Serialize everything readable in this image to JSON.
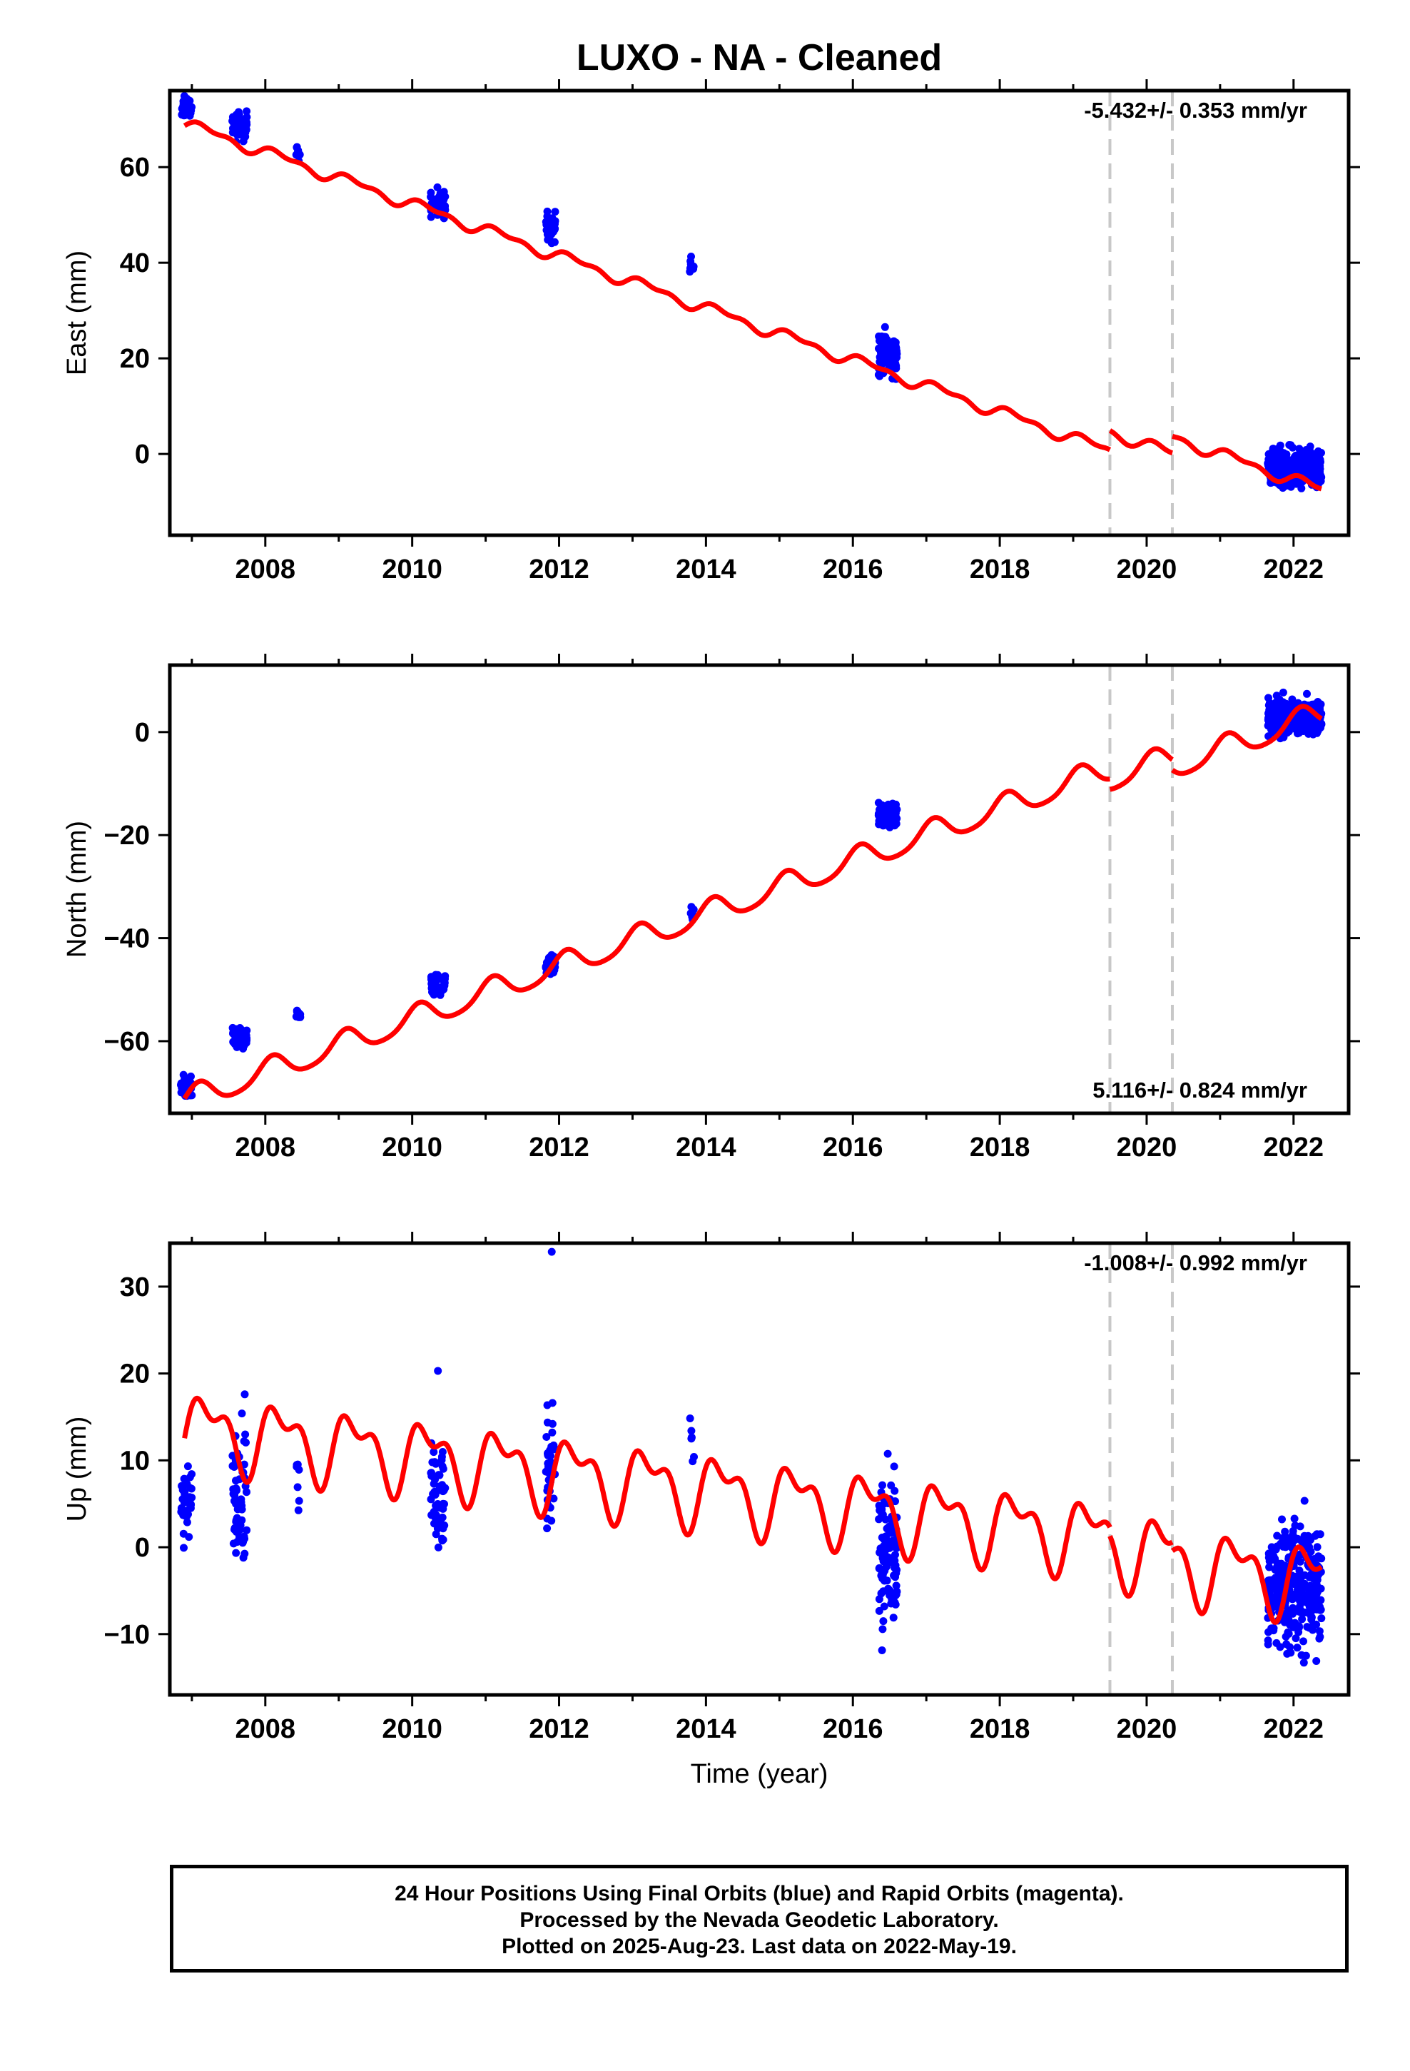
{
  "title": "LUXO  - NA - Cleaned",
  "footer": {
    "line1": "24 Hour Positions Using Final Orbits (blue) and Rapid Orbits (magenta).",
    "line2": "Processed by the Nevada Geodetic Laboratory.",
    "line3": "Plotted on 2025-Aug-23. Last data on 2022-May-19."
  },
  "xlabel": "Time (year)",
  "colors": {
    "data": "#0000ff",
    "model": "#ff0000",
    "offset_lines": "#c8c8c8",
    "axis": "#000000"
  },
  "chart_data": [
    {
      "type": "scatter",
      "ylabel": "East (mm)",
      "rate_label": "-5.432+/- 0.353 mm/yr",
      "rate_position": "top-right",
      "xlim": [
        2006.7,
        2022.75
      ],
      "ylim": [
        -17,
        76
      ],
      "xticks": [
        2008,
        2010,
        2012,
        2014,
        2016,
        2018,
        2020,
        2022
      ],
      "yticks": [
        0,
        20,
        40,
        60
      ],
      "offsets": [
        2019.5,
        2020.35
      ],
      "rate": -5.432,
      "intercept": 0.0,
      "t0": 2021.0,
      "seasonal": {
        "a1": 1.0,
        "p1": 0.3,
        "a2": 0.6,
        "p2": 1.1
      },
      "jumps": [
        {
          "t": 2019.5,
          "d": 4.0
        },
        {
          "t": 2020.35,
          "d": 3.5
        }
      ],
      "clusters": [
        {
          "t1": 2006.85,
          "t2": 2007.0,
          "c": 72.5,
          "s": 1.5,
          "n": 40
        },
        {
          "t1": 2007.55,
          "t2": 2007.75,
          "c": 68.5,
          "s": 2.0,
          "n": 60
        },
        {
          "t1": 2008.42,
          "t2": 2008.48,
          "c": 63.0,
          "s": 1.2,
          "n": 8
        },
        {
          "t1": 2010.25,
          "t2": 2010.45,
          "c": 52.5,
          "s": 2.0,
          "n": 55
        },
        {
          "t1": 2011.82,
          "t2": 2011.95,
          "c": 47.5,
          "s": 2.2,
          "n": 45
        },
        {
          "t1": 2013.78,
          "t2": 2013.84,
          "c": 39.5,
          "s": 1.2,
          "n": 8
        },
        {
          "t1": 2016.35,
          "t2": 2016.6,
          "c": 21.0,
          "s": 3.0,
          "n": 110
        },
        {
          "t1": 2021.65,
          "t2": 2022.38,
          "c": -3.0,
          "s": 2.8,
          "n": 320
        }
      ]
    },
    {
      "type": "scatter",
      "ylabel": "North (mm)",
      "rate_label": "5.116+/- 0.824 mm/yr",
      "rate_position": "bottom-right",
      "xlim": [
        2006.7,
        2022.75
      ],
      "ylim": [
        -74,
        13
      ],
      "xticks": [
        2008,
        2010,
        2012,
        2014,
        2016,
        2018,
        2020,
        2022
      ],
      "yticks": [
        -60,
        -40,
        -20,
        0
      ],
      "offsets": [
        2019.5,
        2020.35
      ],
      "rate": 5.116,
      "intercept": -3.5,
      "t0": 2021.0,
      "seasonal": {
        "a1": 2.4,
        "p1": 1.0,
        "a2": 0.4,
        "p2": 0.2
      },
      "jumps": [
        {
          "t": 2019.5,
          "d": -2.0
        },
        {
          "t": 2020.35,
          "d": -2.0
        }
      ],
      "clusters": [
        {
          "t1": 2006.85,
          "t2": 2007.0,
          "c": -69.0,
          "s": 1.6,
          "n": 35
        },
        {
          "t1": 2007.55,
          "t2": 2007.75,
          "c": -59.5,
          "s": 1.2,
          "n": 55
        },
        {
          "t1": 2008.42,
          "t2": 2008.48,
          "c": -54.5,
          "s": 0.8,
          "n": 8
        },
        {
          "t1": 2010.25,
          "t2": 2010.45,
          "c": -49.0,
          "s": 1.5,
          "n": 50
        },
        {
          "t1": 2011.82,
          "t2": 2011.95,
          "c": -45.0,
          "s": 1.2,
          "n": 40
        },
        {
          "t1": 2013.78,
          "t2": 2013.84,
          "c": -35.5,
          "s": 1.0,
          "n": 8
        },
        {
          "t1": 2016.35,
          "t2": 2016.6,
          "c": -16.0,
          "s": 1.8,
          "n": 110
        },
        {
          "t1": 2021.65,
          "t2": 2022.38,
          "c": 3.0,
          "s": 2.3,
          "n": 320
        }
      ]
    },
    {
      "type": "scatter",
      "ylabel": "Up (mm)",
      "rate_label": "-1.008+/- 0.992 mm/yr",
      "rate_position": "top-right",
      "xlim": [
        2006.7,
        2022.75
      ],
      "ylim": [
        -17,
        35
      ],
      "xticks": [
        2008,
        2010,
        2012,
        2014,
        2016,
        2018,
        2020,
        2022
      ],
      "yticks": [
        -10,
        0,
        10,
        20,
        30
      ],
      "offsets": [
        2019.5,
        2020.35
      ],
      "rate": -1.008,
      "intercept": -2.5,
      "t0": 2021.0,
      "seasonal": {
        "a1": 3.5,
        "p1": 0.2,
        "a2": 2.0,
        "p2": 1.4
      },
      "jumps": [
        {
          "t": 2019.5,
          "d": -1.0
        },
        {
          "t": 2020.35,
          "d": -1.0
        }
      ],
      "clusters": [
        {
          "t1": 2006.85,
          "t2": 2007.0,
          "c": 5.0,
          "s": 3.0,
          "n": 35
        },
        {
          "t1": 2007.55,
          "t2": 2007.75,
          "c": 7.0,
          "s": 5.0,
          "n": 60
        },
        {
          "t1": 2008.42,
          "t2": 2008.48,
          "c": 8.0,
          "s": 3.0,
          "n": 8
        },
        {
          "t1": 2010.25,
          "t2": 2010.45,
          "c": 6.0,
          "s": 4.5,
          "n": 50
        },
        {
          "t1": 2011.82,
          "t2": 2011.95,
          "c": 9.0,
          "s": 5.5,
          "n": 40
        },
        {
          "t1": 2013.78,
          "t2": 2013.84,
          "c": 12.0,
          "s": 3.0,
          "n": 6
        },
        {
          "t1": 2016.35,
          "t2": 2016.6,
          "c": -1.0,
          "s": 6.0,
          "n": 110
        },
        {
          "t1": 2021.65,
          "t2": 2022.38,
          "c": -4.5,
          "s": 5.0,
          "n": 320
        }
      ],
      "outliers": [
        {
          "t": 2011.9,
          "y": 34.0
        },
        {
          "t": 2010.35,
          "y": 20.3
        },
        {
          "t": 2007.72,
          "y": 17.6
        }
      ]
    }
  ]
}
